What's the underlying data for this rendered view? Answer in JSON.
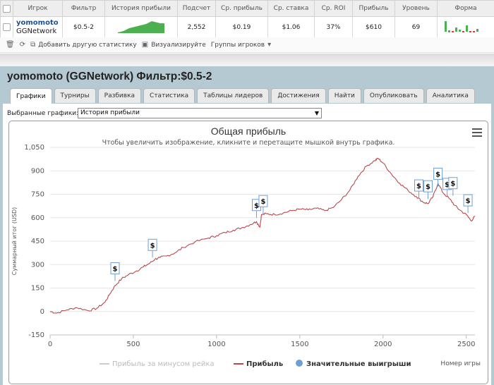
{
  "stats": {
    "headers": [
      "Игрок",
      "Фильтр",
      "История прибыли",
      "Подсчет",
      "Ср. прибыль",
      "Ср. ставка",
      "Ср. ROI",
      "Прибыль",
      "Уровень",
      "Форма"
    ],
    "player_name": "yomomoto",
    "network": "GGNetwork",
    "filter": "$0.5-2",
    "count": "2,552",
    "avg_profit": "$0.19",
    "avg_stake": "$1.06",
    "avg_roi": "37%",
    "profit": "$610",
    "level": "69"
  },
  "toolbar": {
    "add_stats": "Добавить другую статистику",
    "visualize": "Визуализируйте",
    "groups": "Группы игроков"
  },
  "panel": {
    "title": "yomomoto (GGNetwork) Фильтр:$0.5-2",
    "tabs": [
      "Графики",
      "Турниры",
      "Разбивка",
      "Статистика",
      "Таблицы лидеров",
      "Достижения",
      "Найти",
      "Опубликовать",
      "Аналитика"
    ],
    "active_tab": "Графики",
    "selected_label": "Выбранные графики:",
    "selected_value": "История прибыли"
  },
  "chart_data": {
    "type": "line",
    "title": "Общая прибыль",
    "subtitle": "Чтобы увеличить изображение, кликните и перетащите мышкой внутрь графика.",
    "ylabel": "Суммарный итог (USD)",
    "xlabel": "Номер игры",
    "ylim": [
      -150,
      1050
    ],
    "yticks": [
      "-150",
      "0",
      "150",
      "300",
      "450",
      "600",
      "750",
      "900",
      "1,050"
    ],
    "xlim": [
      0,
      2552
    ],
    "xticks": [
      "0",
      "500",
      "1000",
      "1500",
      "2000",
      "2500"
    ],
    "legend_position": "bottom",
    "series": [
      {
        "name": "Прибыль за минусом рейка",
        "color": "#cccccc",
        "visible": false
      },
      {
        "name": "Прибыль",
        "color": "#b8484c",
        "x": [
          0,
          40,
          100,
          160,
          230,
          280,
          330,
          360,
          390,
          430,
          470,
          520,
          560,
          600,
          630,
          660,
          700,
          750,
          800,
          870,
          950,
          1000,
          1050,
          1100,
          1150,
          1200,
          1240,
          1260,
          1270,
          1300,
          1350,
          1400,
          1450,
          1500,
          1550,
          1600,
          1650,
          1700,
          1750,
          1800,
          1850,
          1900,
          1950,
          1970,
          2000,
          2050,
          2100,
          2150,
          2200,
          2240,
          2270,
          2300,
          2330,
          2360,
          2400,
          2430,
          2460,
          2500,
          2530,
          2552
        ],
        "y": [
          0,
          -10,
          10,
          25,
          5,
          20,
          60,
          115,
          165,
          210,
          235,
          260,
          285,
          310,
          335,
          345,
          355,
          375,
          410,
          445,
          470,
          485,
          505,
          520,
          535,
          555,
          575,
          540,
          620,
          625,
          620,
          630,
          645,
          655,
          650,
          660,
          645,
          665,
          715,
          775,
          865,
          930,
          965,
          980,
          950,
          880,
          820,
          775,
          735,
          700,
          690,
          735,
          820,
          760,
          720,
          680,
          650,
          620,
          580,
          610
        ]
      },
      {
        "name": "Значительные выигрыши",
        "color": "#6f9fd8",
        "points": [
          {
            "x": 390,
            "y": 195
          },
          {
            "x": 615,
            "y": 345
          },
          {
            "x": 1240,
            "y": 600
          },
          {
            "x": 1280,
            "y": 625
          },
          {
            "x": 2215,
            "y": 725
          },
          {
            "x": 2270,
            "y": 720
          },
          {
            "x": 2330,
            "y": 800
          },
          {
            "x": 2385,
            "y": 735
          },
          {
            "x": 2420,
            "y": 740
          },
          {
            "x": 2510,
            "y": 630
          }
        ]
      }
    ]
  }
}
